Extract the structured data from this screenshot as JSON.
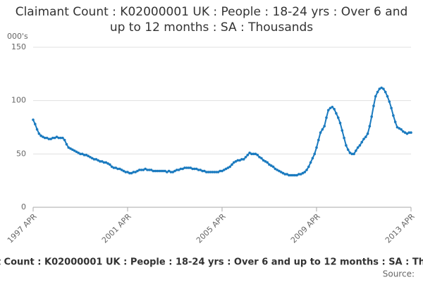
{
  "chart_data": {
    "type": "line",
    "title": "Claimant Count : K02000001 UK : People : 18-24 yrs : Over 6 and up to 12 months : SA : Thousands",
    "y_label": "000's",
    "source": "Source:",
    "categories": [
      "1997 APR",
      null,
      null,
      null,
      null,
      null,
      null,
      null,
      null,
      null,
      null,
      null,
      null,
      null,
      null,
      null,
      null,
      null,
      null,
      null,
      null,
      null,
      null,
      null,
      null,
      null,
      null,
      null,
      null,
      null,
      null,
      null,
      null,
      null,
      null,
      null,
      null,
      null,
      null,
      null,
      null,
      null,
      null,
      null,
      null,
      null,
      null,
      null,
      "2001 APR",
      null,
      null,
      null,
      null,
      null,
      null,
      null,
      null,
      null,
      null,
      null,
      null,
      null,
      null,
      null,
      null,
      null,
      null,
      null,
      null,
      null,
      null,
      null,
      null,
      null,
      null,
      null,
      null,
      null,
      null,
      null,
      null,
      null,
      null,
      null,
      null,
      null,
      null,
      null,
      null,
      null,
      null,
      null,
      null,
      null,
      null,
      null,
      "2005 APR",
      null,
      null,
      null,
      null,
      null,
      null,
      null,
      null,
      null,
      null,
      null,
      null,
      null,
      null,
      null,
      null,
      null,
      null,
      null,
      null,
      null,
      null,
      null,
      null,
      null,
      null,
      null,
      null,
      null,
      null,
      null,
      null,
      null,
      null,
      null,
      null,
      null,
      null,
      null,
      null,
      null,
      null,
      null,
      null,
      null,
      null,
      null,
      "2009 APR",
      null,
      null,
      null,
      null,
      null,
      null,
      null,
      null,
      null,
      null,
      null,
      null,
      null,
      null,
      null,
      null,
      null,
      null,
      null,
      null,
      null,
      null,
      null,
      null,
      null,
      null,
      null,
      null,
      null,
      null,
      null,
      null,
      null,
      null,
      null,
      null,
      null,
      null,
      null,
      null,
      null,
      null,
      null,
      null,
      null,
      null,
      null,
      "2013 APR"
    ],
    "series": [
      {
        "name": "Claimant Count",
        "color": "#1a7abf",
        "values": [
          82,
          78,
          73,
          69,
          67,
          66,
          65,
          65,
          64,
          64,
          65,
          65,
          66,
          65,
          65,
          65,
          63,
          59,
          56,
          55,
          54,
          53,
          52,
          51,
          50,
          50,
          49,
          49,
          48,
          47,
          46,
          45,
          45,
          44,
          43,
          43,
          42,
          42,
          41,
          40,
          38,
          37,
          37,
          36,
          36,
          35,
          34,
          33,
          33,
          32,
          32,
          33,
          33,
          34,
          35,
          35,
          35,
          36,
          35,
          35,
          35,
          34,
          34,
          34,
          34,
          34,
          34,
          34,
          33,
          34,
          33,
          33,
          34,
          35,
          35,
          36,
          36,
          37,
          37,
          37,
          37,
          36,
          36,
          36,
          35,
          35,
          34,
          34,
          33,
          33,
          33,
          33,
          33,
          33,
          33,
          34,
          34,
          35,
          36,
          37,
          38,
          40,
          42,
          43,
          44,
          44,
          45,
          45,
          47,
          49,
          51,
          50,
          50,
          50,
          49,
          47,
          46,
          44,
          43,
          42,
          40,
          39,
          38,
          36,
          35,
          34,
          33,
          32,
          31,
          31,
          30,
          30,
          30,
          30,
          30,
          31,
          31,
          32,
          33,
          35,
          38,
          42,
          46,
          50,
          56,
          63,
          70,
          73,
          76,
          84,
          91,
          93,
          94,
          92,
          88,
          84,
          79,
          72,
          65,
          58,
          54,
          51,
          50,
          50,
          53,
          56,
          58,
          61,
          64,
          66,
          69,
          76,
          85,
          95,
          104,
          108,
          111,
          112,
          111,
          108,
          104,
          99,
          93,
          86,
          80,
          75,
          74,
          73,
          71,
          70,
          69,
          70,
          70
        ]
      }
    ],
    "ylim": [
      0,
      150
    ],
    "yticks": [
      0,
      50,
      100,
      150
    ],
    "grid": true
  }
}
